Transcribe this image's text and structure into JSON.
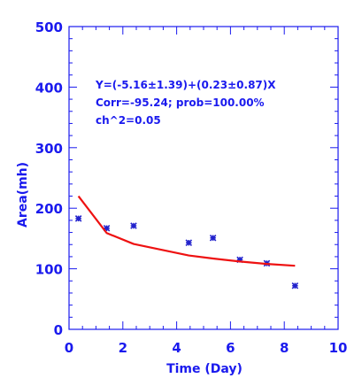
{
  "chart_data": {
    "type": "scatter",
    "xlabel": "Time (Day)",
    "ylabel": "Area(mh)",
    "xlim": [
      0,
      10
    ],
    "ylim": [
      0,
      500
    ],
    "x_ticks": [
      "0",
      "2",
      "4",
      "6",
      "8",
      "10"
    ],
    "y_ticks": [
      "0",
      "100",
      "200",
      "300",
      "400",
      "500"
    ],
    "annotations": [
      "Y=(-5.16±1.39)+(0.23±0.87)X",
      "Corr=-95.24;  prob=100.00%",
      "ch^2=0.05"
    ],
    "series": [
      {
        "type": "scatter",
        "marker": "asterisk",
        "color": "#2222cc",
        "points": [
          {
            "x": 0.35,
            "y": 183
          },
          {
            "x": 1.4,
            "y": 167
          },
          {
            "x": 2.4,
            "y": 171
          },
          {
            "x": 4.45,
            "y": 143
          },
          {
            "x": 5.35,
            "y": 151
          },
          {
            "x": 6.35,
            "y": 115
          },
          {
            "x": 7.35,
            "y": 109
          },
          {
            "x": 8.4,
            "y": 72
          }
        ]
      },
      {
        "type": "line",
        "color": "#ee1111",
        "points": [
          {
            "x": 0.35,
            "y": 220
          },
          {
            "x": 1.4,
            "y": 159
          },
          {
            "x": 2.4,
            "y": 141
          },
          {
            "x": 4.45,
            "y": 122
          },
          {
            "x": 5.35,
            "y": 117
          },
          {
            "x": 6.35,
            "y": 112
          },
          {
            "x": 7.35,
            "y": 108
          },
          {
            "x": 8.4,
            "y": 105
          }
        ]
      }
    ],
    "colors": {
      "axes": "#1a1aee",
      "text": "#1a1aee"
    }
  }
}
